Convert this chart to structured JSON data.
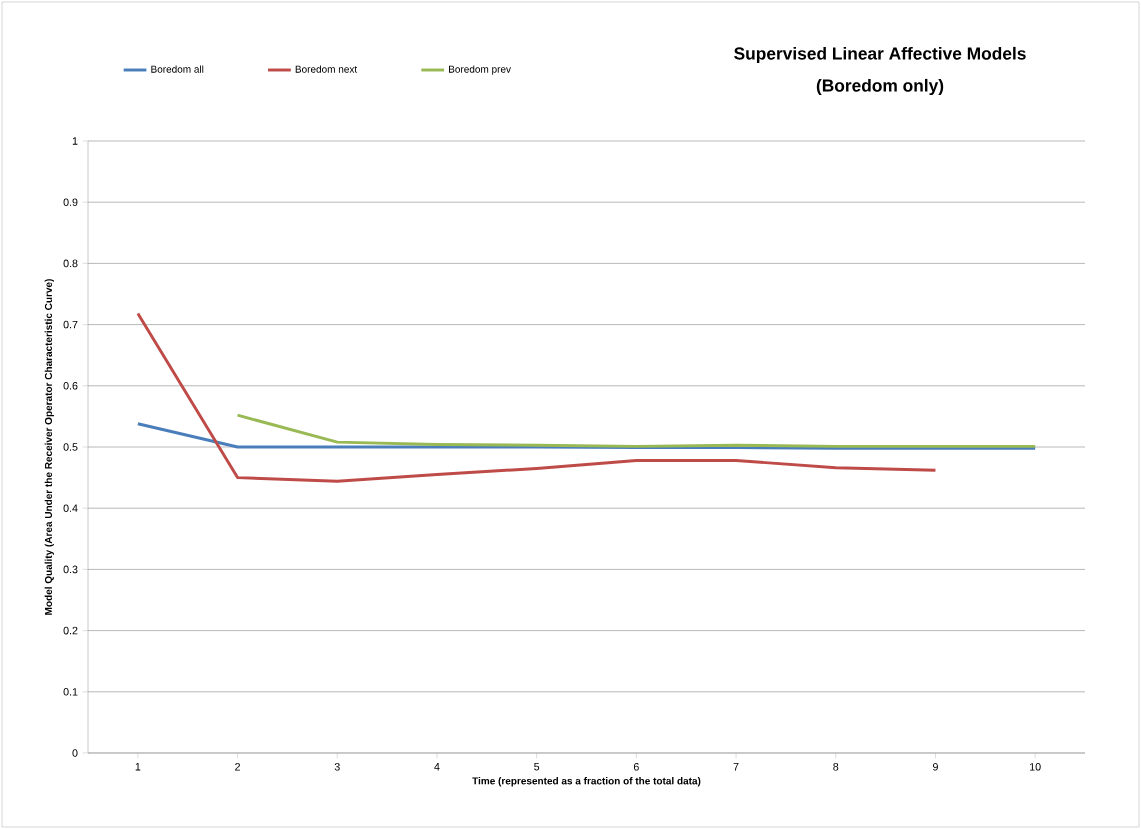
{
  "chart_data": {
    "type": "line",
    "title": "Supervised Linear Affective Models",
    "subtitle": "(Boredom only)",
    "xlabel": "Time (represented as a fraction of the total data)",
    "ylabel": "Model Quality (Area Under the Receiver Operator Characteristic Curve)",
    "categories": [
      "1",
      "2",
      "3",
      "4",
      "5",
      "6",
      "7",
      "8",
      "9",
      "10"
    ],
    "series": [
      {
        "name": "Boredom all",
        "color": "#4a7ebb",
        "values": [
          0.538,
          0.5,
          0.5,
          0.5,
          0.5,
          0.499,
          0.499,
          0.498,
          0.498,
          0.498
        ]
      },
      {
        "name": "Boredom next",
        "color": "#be4b48",
        "values": [
          0.718,
          0.45,
          0.444,
          0.455,
          0.465,
          0.478,
          0.478,
          0.466,
          0.462,
          null
        ]
      },
      {
        "name": "Boredom prev",
        "color": "#98b954",
        "values": [
          null,
          0.552,
          0.508,
          0.504,
          0.503,
          0.501,
          0.503,
          0.501,
          0.501,
          0.501
        ]
      }
    ],
    "ylim": [
      0,
      1
    ],
    "yticks": [
      0,
      0.1,
      0.2,
      0.3,
      0.4,
      0.5,
      0.6,
      0.7,
      0.8,
      0.9,
      1
    ],
    "grid": "y",
    "legend": "top left",
    "marker": "none",
    "line_style": "solid"
  }
}
